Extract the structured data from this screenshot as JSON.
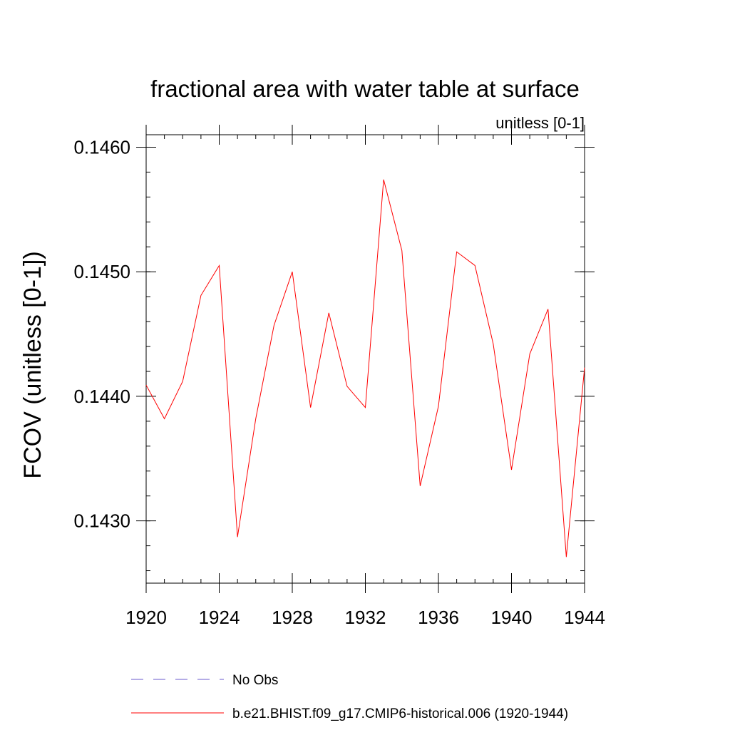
{
  "chart_data": {
    "type": "line",
    "title": "fractional area with water table at surface",
    "subtitle": "unitless [0-1]",
    "xlabel": "",
    "ylabel": "FCOV  (unitless [0-1])",
    "xlim": [
      1920,
      1944
    ],
    "ylim": [
      0.1425,
      0.1461
    ],
    "x_ticks": [
      1920,
      1924,
      1928,
      1932,
      1936,
      1940,
      1944
    ],
    "x_tick_labels": [
      "1920",
      "1924",
      "1928",
      "1932",
      "1936",
      "1940",
      "1944"
    ],
    "y_ticks": [
      0.143,
      0.144,
      0.145,
      0.146
    ],
    "y_tick_labels": [
      "0.1430",
      "0.1440",
      "0.1450",
      "0.1460"
    ],
    "y_minor_step": 0.0002,
    "x_minor_step": 1,
    "grid": false,
    "legend_position": "bottom",
    "series": [
      {
        "name": "No Obs",
        "color": "#6a5acd",
        "dashed": true,
        "x": [],
        "values": []
      },
      {
        "name": "b.e21.BHIST.f09_g17.CMIP6-historical.006 (1920-1944)",
        "color": "#ff0000",
        "dashed": false,
        "x": [
          1920,
          1921,
          1922,
          1923,
          1924,
          1925,
          1926,
          1927,
          1928,
          1929,
          1930,
          1931,
          1932,
          1933,
          1934,
          1935,
          1936,
          1937,
          1938,
          1939,
          1940,
          1941,
          1942,
          1943,
          1944
        ],
        "values": [
          0.14409,
          0.14382,
          0.14412,
          0.14481,
          0.14505,
          0.14287,
          0.14382,
          0.14457,
          0.145,
          0.14391,
          0.14467,
          0.14408,
          0.14391,
          0.14574,
          0.14517,
          0.14328,
          0.14392,
          0.14516,
          0.14505,
          0.14442,
          0.14341,
          0.14434,
          0.1447,
          0.14271,
          0.14423
        ]
      }
    ]
  }
}
